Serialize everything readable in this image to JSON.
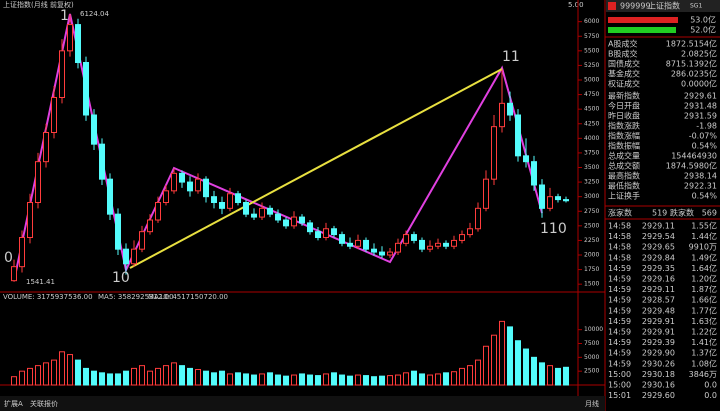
{
  "header": {
    "title": "上证指数(月线 前复权)",
    "corner_value": "5.00"
  },
  "chart_data": {
    "type": "candlestick",
    "open": [
      1560,
      1800,
      2300,
      2900,
      3600,
      4100,
      4700,
      5500,
      5950,
      5300,
      4400,
      3900,
      3300,
      2700,
      2100,
      1850,
      2100,
      2400,
      2600,
      2900,
      3100,
      3400,
      3250,
      3100,
      3300,
      3000,
      2900,
      2800,
      3050,
      2900,
      2700,
      2650,
      2800,
      2700,
      2600,
      2500,
      2650,
      2550,
      2400,
      2300,
      2450,
      2350,
      2200,
      2150,
      2250,
      2100,
      2050,
      2000,
      2050,
      2200,
      2350,
      2250,
      2100,
      2150,
      2200,
      2150,
      2250,
      2350,
      2450,
      2800,
      3300,
      4200,
      4600,
      4400,
      3700,
      3600,
      3200,
      2800,
      3000,
      2950
    ],
    "high": [
      1920,
      2420,
      3050,
      3750,
      4250,
      4900,
      5700,
      6124.04,
      6050,
      5400,
      4500,
      4000,
      3400,
      2800,
      2200,
      2250,
      2500,
      2700,
      3000,
      3200,
      3480,
      3450,
      3350,
      3400,
      3350,
      3100,
      3000,
      3150,
      3100,
      2950,
      2800,
      2900,
      2850,
      2780,
      2650,
      2750,
      2700,
      2600,
      2480,
      2550,
      2500,
      2400,
      2300,
      2350,
      2300,
      2200,
      2150,
      2120,
      2280,
      2420,
      2400,
      2300,
      2250,
      2280,
      2250,
      2330,
      2420,
      2550,
      2900,
      3450,
      4400,
      5178,
      4800,
      4500,
      4000,
      3700,
      3300,
      3150,
      3050,
      3000
    ],
    "low": [
      1541.41,
      1700,
      2200,
      2800,
      3500,
      4000,
      4600,
      5400,
      5200,
      4300,
      3800,
      3200,
      2600,
      2000,
      1664,
      1800,
      2050,
      2350,
      2550,
      2850,
      3050,
      3150,
      3000,
      3050,
      2900,
      2800,
      2700,
      2750,
      2850,
      2650,
      2600,
      2600,
      2650,
      2550,
      2450,
      2450,
      2500,
      2350,
      2250,
      2250,
      2300,
      2150,
      2100,
      2100,
      2050,
      1990,
      1950,
      1950,
      2000,
      2150,
      2200,
      2050,
      2050,
      2100,
      2100,
      2100,
      2200,
      2300,
      2400,
      2750,
      3200,
      4100,
      4300,
      3600,
      3500,
      3100,
      2638,
      2750,
      2900,
      2900
    ],
    "close": [
      1800,
      2300,
      2900,
      3600,
      4100,
      4700,
      5500,
      5950,
      5300,
      4400,
      3900,
      3300,
      2700,
      2100,
      1850,
      2100,
      2400,
      2600,
      2900,
      3100,
      3400,
      3250,
      3100,
      3300,
      3000,
      2900,
      2800,
      3050,
      2900,
      2700,
      2650,
      2800,
      2700,
      2600,
      2500,
      2650,
      2550,
      2400,
      2300,
      2450,
      2350,
      2200,
      2150,
      2250,
      2100,
      2050,
      2000,
      2050,
      2200,
      2350,
      2250,
      2100,
      2150,
      2200,
      2150,
      2250,
      2350,
      2450,
      2800,
      3300,
      4200,
      4600,
      4400,
      3700,
      3600,
      3200,
      2800,
      3000,
      2950,
      2930
    ],
    "ylim": [
      1400,
      6200
    ],
    "yticks": [
      1500,
      1750,
      2000,
      2250,
      2500,
      2750,
      3000,
      3250,
      3500,
      3750,
      4000,
      4250,
      4500,
      4750,
      5000,
      5250,
      5500,
      5750,
      6000
    ],
    "wave_labels": [
      "0",
      "1",
      "10",
      "11",
      "110"
    ]
  },
  "volume": {
    "type": "bar",
    "title": "VOLUME: 3175937536.00",
    "ma5": "MA5: 3582925312.00",
    "ma10": "MA10: 4517150720.00",
    "values": [
      1500,
      2500,
      3000,
      3500,
      4000,
      4500,
      6000,
      5500,
      4500,
      3000,
      2500,
      2200,
      2000,
      2000,
      2500,
      3000,
      3500,
      2500,
      3000,
      3500,
      4000,
      3500,
      3000,
      2800,
      2500,
      2200,
      2500,
      2000,
      2200,
      2000,
      1800,
      2000,
      2200,
      1800,
      1600,
      1800,
      2000,
      1800,
      1700,
      2000,
      2200,
      1800,
      1600,
      1800,
      1700,
      1500,
      1600,
      1700,
      1800,
      2200,
      2500,
      2000,
      1800,
      2000,
      2200,
      2400,
      3000,
      3500,
      4500,
      7000,
      9000,
      11500,
      10500,
      8000,
      6500,
      5000,
      4000,
      3500,
      3000,
      3200
    ],
    "ylim": [
      0,
      15000
    ],
    "yticks": [
      2500,
      5000,
      7500,
      10000
    ]
  },
  "quote_panel": {
    "code": "999999",
    "name": "上证指数",
    "suffix": "SG1",
    "bars": [
      "53.0亿",
      "52.0亿"
    ],
    "rows": [
      [
        "A股成交",
        "1872.5154亿"
      ],
      [
        "B股成交",
        "2.0825亿"
      ],
      [
        "国债成交",
        "8715.1392亿"
      ],
      [
        "基金成交",
        "286.0235亿"
      ],
      [
        "权证成交",
        "0.0000亿"
      ],
      [
        "最新指数",
        "2929.61"
      ],
      [
        "今日开盘",
        "2931.48"
      ],
      [
        "昨日收盘",
        "2931.59"
      ],
      [
        "指数涨跌",
        "-1.98"
      ],
      [
        "指数涨幅",
        "-0.07%"
      ],
      [
        "指数振幅",
        "0.54%"
      ],
      [
        "总成交量",
        "154464930"
      ],
      [
        "总成交额",
        "1874.5980亿"
      ],
      [
        "最高指数",
        "2938.14"
      ],
      [
        "最低指数",
        "2922.31"
      ],
      [
        "上证换手",
        "0.54%"
      ]
    ],
    "breadth": [
      "涨家数",
      "519",
      "跌家数",
      "569"
    ],
    "trades": [
      [
        "14:58",
        "2929.11",
        "1.55亿"
      ],
      [
        "14:58",
        "2929.54",
        "1.44亿"
      ],
      [
        "14:58",
        "2929.65",
        "9910万"
      ],
      [
        "14:58",
        "2929.84",
        "1.49亿"
      ],
      [
        "14:59",
        "2929.35",
        "1.64亿"
      ],
      [
        "14:59",
        "2929.16",
        "1.20亿"
      ],
      [
        "14:59",
        "2929.11",
        "1.87亿"
      ],
      [
        "14:59",
        "2928.57",
        "1.66亿"
      ],
      [
        "14:59",
        "2929.48",
        "1.77亿"
      ],
      [
        "14:59",
        "2929.91",
        "1.63亿"
      ],
      [
        "14:59",
        "2929.91",
        "1.22亿"
      ],
      [
        "14:59",
        "2929.39",
        "1.41亿"
      ],
      [
        "14:59",
        "2929.90",
        "1.37亿"
      ],
      [
        "14:59",
        "2930.26",
        "1.08亿"
      ],
      [
        "15:00",
        "2930.18",
        "3846万"
      ],
      [
        "15:00",
        "2930.16",
        "0.0"
      ],
      [
        "15:01",
        "2929.60",
        "0.0"
      ]
    ]
  },
  "status_bar": {
    "tabs": [
      "扩展A",
      "关联报价"
    ],
    "period": "月线"
  }
}
